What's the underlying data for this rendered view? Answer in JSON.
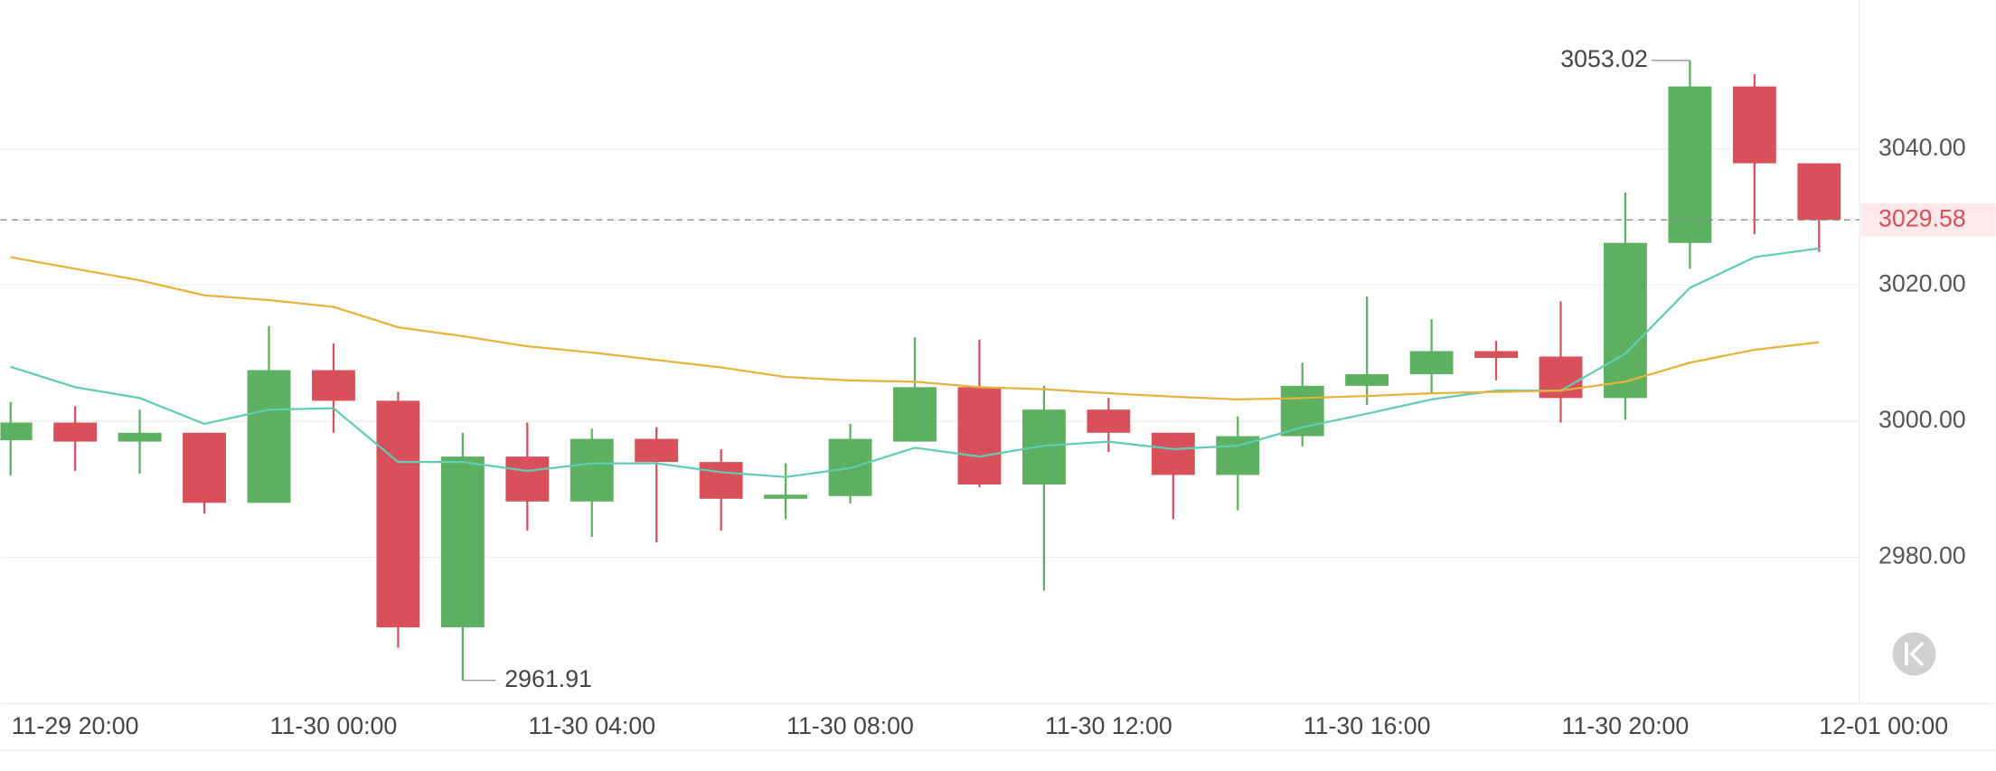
{
  "chart_data": {
    "type": "candlestick",
    "categories": [
      null,
      "11-29 20:00",
      null,
      null,
      null,
      "11-30 00:00",
      null,
      null,
      null,
      "11-30 04:00",
      null,
      null,
      null,
      "11-30 08:00",
      null,
      null,
      null,
      "11-30 12:00",
      null,
      null,
      null,
      "11-30 16:00",
      null,
      null,
      null,
      "11-30 20:00",
      null,
      null,
      null,
      "12-01 00:00"
    ],
    "open": [
      2997.2,
      2999.8,
      2997.0,
      2998.3,
      2988.0,
      3007.5,
      3003.0,
      2969.7,
      2994.8,
      2988.2,
      2997.4,
      2994.0,
      2988.6,
      2989.0,
      2997.0,
      3005.0,
      2990.7,
      3001.7,
      2998.3,
      2992.1,
      2997.8,
      3005.2,
      3006.9,
      3010.3,
      3009.5,
      3003.4,
      3026.2,
      3049.2,
      3037.9,
      null
    ],
    "high": [
      3002.8,
      3002.2,
      3001.7,
      2998.3,
      3014.0,
      3011.4,
      3004.3,
      2998.3,
      2999.8,
      2998.9,
      2999.1,
      2995.9,
      2993.8,
      2999.6,
      3012.3,
      3012.0,
      3005.2,
      3003.4,
      2998.3,
      3000.7,
      3008.6,
      3018.3,
      3015.0,
      3011.8,
      3017.6,
      3033.6,
      3053.02,
      3051.0,
      3037.9,
      null
    ],
    "low": [
      2992.0,
      2992.7,
      2992.3,
      2986.4,
      2988.0,
      2998.3,
      2966.7,
      2961.91,
      2983.9,
      2983.0,
      2982.2,
      2983.9,
      2985.6,
      2987.9,
      2997.0,
      2990.3,
      2975.1,
      2995.5,
      2985.6,
      2986.9,
      2996.3,
      3002.4,
      3004.1,
      3006.0,
      2999.8,
      3000.2,
      3022.4,
      3027.5,
      3024.9,
      null
    ],
    "close": [
      2999.8,
      2997.0,
      2998.3,
      2988.0,
      3007.5,
      3003.0,
      2969.7,
      2994.8,
      2988.2,
      2997.4,
      2994.0,
      2988.6,
      2989.2,
      2997.4,
      3005.0,
      2990.7,
      3001.7,
      2998.3,
      2992.1,
      2997.8,
      3005.2,
      3006.9,
      3010.3,
      3009.3,
      3003.4,
      3026.2,
      3049.2,
      3037.9,
      3029.58,
      null
    ],
    "up_color": "#5cb05f",
    "down_color": "#d8505a",
    "lines": [
      {
        "color": "#62cdb5",
        "values": [
          3008.0,
          3005.0,
          3003.4,
          2999.6,
          3001.7,
          3001.9,
          2994.0,
          2994.0,
          2992.7,
          2993.8,
          2993.8,
          2992.5,
          2991.8,
          2993.1,
          2996.1,
          2994.8,
          2996.4,
          2997.0,
          2995.9,
          2996.4,
          2999.1,
          3001.1,
          3003.2,
          3004.5,
          3004.5,
          3009.9,
          3019.6,
          3024.1,
          3025.4,
          null
        ]
      },
      {
        "color": "#e6b43c",
        "values": [
          3024.1,
          3022.4,
          3020.7,
          3018.5,
          3017.8,
          3016.8,
          3013.8,
          3012.5,
          3011.0,
          3010.1,
          3009.0,
          3007.9,
          3006.5,
          3006.0,
          3005.8,
          3005.0,
          3004.7,
          3004.1,
          3003.6,
          3003.2,
          3003.4,
          3003.7,
          3004.1,
          3004.3,
          3004.5,
          3005.8,
          3008.6,
          3010.5,
          3011.6,
          null
        ]
      }
    ],
    "last_price": 3029.58,
    "high_annotation": 3053.02,
    "low_annotation": 2961.91,
    "ylim": [
      2958.5,
      3061.9
    ],
    "yticks": [
      {
        "value": 2980,
        "label": "2980.00"
      },
      {
        "value": 3000,
        "label": "3000.00"
      },
      {
        "value": 3020,
        "label": "3020.00"
      },
      {
        "value": 3040,
        "label": "3040.00"
      }
    ],
    "grid": true
  }
}
